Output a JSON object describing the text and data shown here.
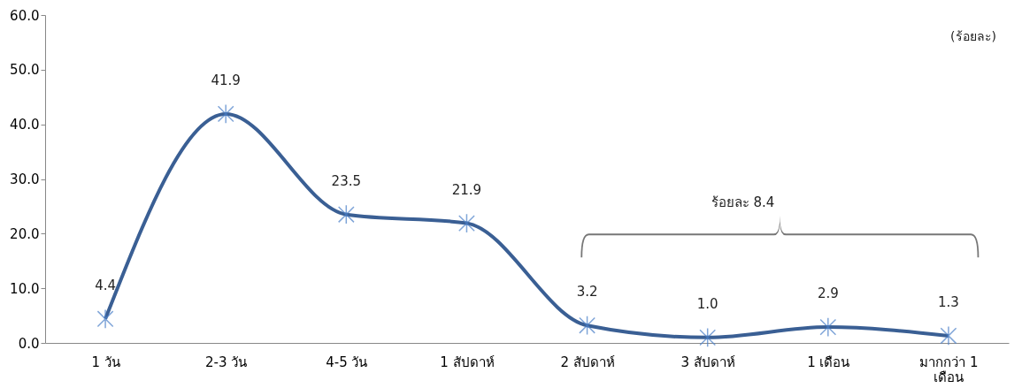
{
  "chart_data": {
    "type": "line",
    "categories": [
      "1 วัน",
      "2-3 วัน",
      "4-5 วัน",
      "1 สัปดาห์",
      "2 สัปดาห์",
      "3 สัปดาห์",
      "1 เดือน",
      "มากกว่า 1 เดือน"
    ],
    "series": [
      {
        "color": "#3a5f94",
        "values": [
          4.4,
          41.9,
          23.5,
          21.9,
          3.2,
          1.0,
          2.9,
          1.3
        ],
        "value_labels": [
          "4.4",
          "41.9",
          "23.5",
          "21.9",
          "3.2",
          "1.0",
          "2.9",
          "1.3"
        ]
      }
    ],
    "ylabel": "(ร้อยละ)",
    "ylim": [
      0,
      60
    ],
    "yticks": [
      {
        "value": 0,
        "label": "0.0"
      },
      {
        "value": 10,
        "label": "10.0"
      },
      {
        "value": 20,
        "label": "20.0"
      },
      {
        "value": 30,
        "label": "30.0"
      },
      {
        "value": 40,
        "label": "40.0"
      },
      {
        "value": 50,
        "label": "50.0"
      },
      {
        "value": 60,
        "label": "60.0"
      }
    ],
    "annotations": [
      "ร้อยละ 8.4"
    ],
    "grid": false,
    "legend": false,
    "marker": "cross",
    "line_style": "solid"
  }
}
